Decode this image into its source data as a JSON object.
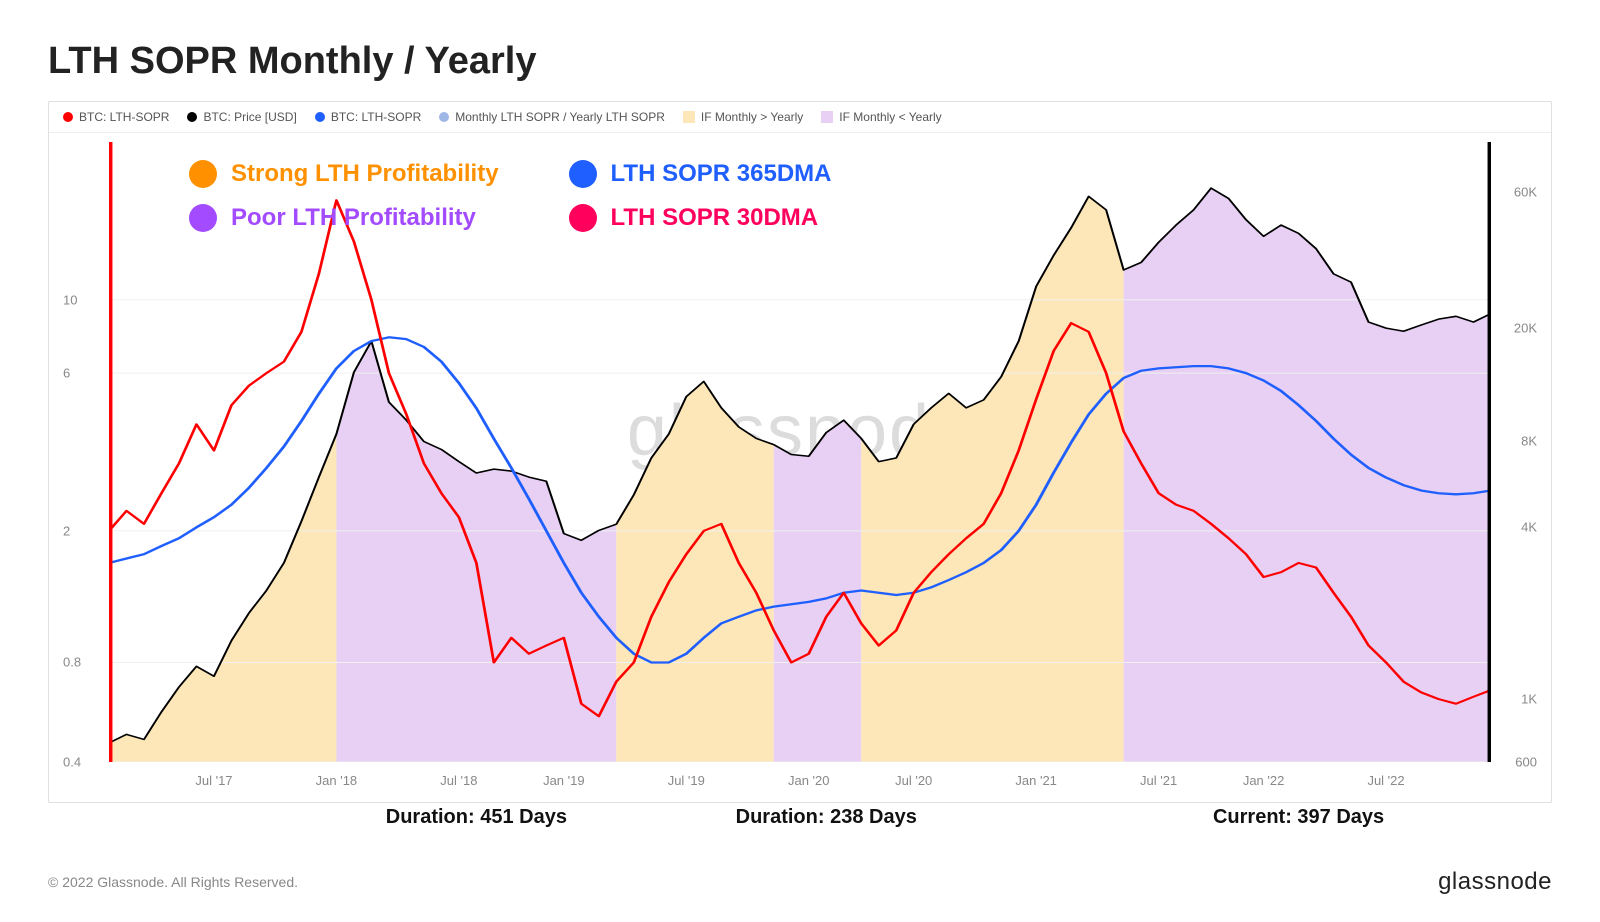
{
  "title": "LTH SOPR Monthly / Yearly",
  "copyright": "© 2022 Glassnode. All Rights Reserved.",
  "brand": "glassnode",
  "watermark": "glassnode",
  "top_legend": [
    {
      "label": "BTC: LTH-SOPR",
      "color": "#ff0000",
      "shape": "dot"
    },
    {
      "label": "BTC: Price [USD]",
      "color": "#000000",
      "shape": "dot"
    },
    {
      "label": "BTC: LTH-SOPR",
      "color": "#1f5fff",
      "shape": "dot"
    },
    {
      "label": "Monthly LTH SOPR / Yearly LTH SOPR",
      "color": "#9fb7e6",
      "shape": "dot"
    },
    {
      "label": "IF Monthly > Yearly",
      "color": "#fde7b8",
      "shape": "sq"
    },
    {
      "label": "IF Monthly < Yearly",
      "color": "#e8d0f4",
      "shape": "sq"
    }
  ],
  "overlay_legend": [
    {
      "label": "Strong LTH Profitability",
      "color": "#ff9100"
    },
    {
      "label": "LTH SOPR 365DMA",
      "color": "#1f5fff"
    },
    {
      "label": "Poor LTH Profitability",
      "color": "#a24bff"
    },
    {
      "label": "LTH SOPR 30DMA",
      "color": "#ff005c"
    }
  ],
  "chart": {
    "background_color": "#ffffff",
    "grid_color": "#f0f0f0",
    "axis_color": "#cccccc",
    "watermark_color": "#dcdcdc",
    "n_points": 80,
    "x_axis": {
      "labels": [
        "Jul '17",
        "Jan '18",
        "Jul '18",
        "Jan '19",
        "Jul '19",
        "Jan '20",
        "Jul '20",
        "Jan '21",
        "Jul '21",
        "Jan '22",
        "Jul '22"
      ],
      "label_idx": [
        6,
        13,
        20,
        26,
        33,
        40,
        46,
        53,
        60,
        66,
        73
      ]
    },
    "left_axis": {
      "scale": "log",
      "min": 0.4,
      "max": 30,
      "ticks": [
        0.4,
        0.8,
        2,
        6,
        10
      ],
      "labels": [
        "0.4",
        "0.8",
        "2",
        "6",
        "10"
      ],
      "label_color": "#888888",
      "label_fontsize": 13
    },
    "right_axis": {
      "scale": "log",
      "min": 600,
      "max": 90000,
      "ticks": [
        600,
        1000,
        4000,
        8000,
        20000,
        60000
      ],
      "labels": [
        "600",
        "1K",
        "4K",
        "8K",
        "20K",
        "60K"
      ],
      "label_color": "#888888",
      "label_fontsize": 13
    },
    "bands": [
      {
        "start_idx": 0,
        "end_idx": 13,
        "color": "#fde7b8"
      },
      {
        "start_idx": 13,
        "end_idx": 29,
        "color": "#e8d0f4"
      },
      {
        "start_idx": 29,
        "end_idx": 38,
        "color": "#fde7b8"
      },
      {
        "start_idx": 38,
        "end_idx": 43,
        "color": "#e8d0f4"
      },
      {
        "start_idx": 43,
        "end_idx": 58,
        "color": "#fde7b8"
      },
      {
        "start_idx": 58,
        "end_idx": 79,
        "color": "#e8d0f4"
      }
    ],
    "band_top_series": "price",
    "durations": [
      {
        "label": "Duration: 451 Days",
        "center_idx": 21
      },
      {
        "label": "Duration: 238 Days",
        "center_idx": 41
      },
      {
        "label": "Current: 397 Days",
        "center_idx": 68
      }
    ],
    "series": {
      "price": {
        "axis": "right",
        "color": "#000000",
        "width": 1.5,
        "data": [
          700,
          750,
          720,
          900,
          1100,
          1300,
          1200,
          1600,
          2000,
          2400,
          3000,
          4200,
          6000,
          8500,
          14000,
          18000,
          11000,
          9500,
          8000,
          7500,
          6800,
          6200,
          6400,
          6300,
          6000,
          5800,
          3800,
          3600,
          3900,
          4100,
          5200,
          7000,
          8500,
          11500,
          13000,
          10500,
          9000,
          8200,
          7800,
          7200,
          7100,
          8600,
          9500,
          8200,
          6800,
          7000,
          9200,
          10500,
          11800,
          10500,
          11200,
          13500,
          18000,
          28000,
          36000,
          45000,
          58000,
          52000,
          32000,
          34000,
          40000,
          46000,
          52000,
          62000,
          57000,
          48000,
          42000,
          46000,
          43000,
          38000,
          31000,
          29000,
          21000,
          20000,
          19500,
          20500,
          21500,
          22000,
          21000,
          22500
        ]
      },
      "red": {
        "axis": "left",
        "color": "#ff0000",
        "width": 2.0,
        "data": [
          2.0,
          2.3,
          2.1,
          2.6,
          3.2,
          4.2,
          3.5,
          4.8,
          5.5,
          6.0,
          6.5,
          8.0,
          12.0,
          20.0,
          15.0,
          10.0,
          6.0,
          4.5,
          3.2,
          2.6,
          2.2,
          1.6,
          0.8,
          0.95,
          0.85,
          0.9,
          0.95,
          0.6,
          0.55,
          0.7,
          0.8,
          1.1,
          1.4,
          1.7,
          2.0,
          2.1,
          1.6,
          1.3,
          1.0,
          0.8,
          0.85,
          1.1,
          1.3,
          1.05,
          0.9,
          1.0,
          1.3,
          1.5,
          1.7,
          1.9,
          2.1,
          2.6,
          3.5,
          5.0,
          7.0,
          8.5,
          8.0,
          6.0,
          4.0,
          3.2,
          2.6,
          2.4,
          2.3,
          2.1,
          1.9,
          1.7,
          1.45,
          1.5,
          1.6,
          1.55,
          1.3,
          1.1,
          0.9,
          0.8,
          0.7,
          0.65,
          0.62,
          0.6,
          0.63,
          0.66
        ]
      },
      "blue": {
        "axis": "left",
        "color": "#1f5fff",
        "width": 2.2,
        "data": [
          1.6,
          1.65,
          1.7,
          1.8,
          1.9,
          2.05,
          2.2,
          2.4,
          2.7,
          3.1,
          3.6,
          4.3,
          5.2,
          6.2,
          7.0,
          7.5,
          7.7,
          7.6,
          7.2,
          6.5,
          5.6,
          4.7,
          3.8,
          3.1,
          2.5,
          2.0,
          1.6,
          1.3,
          1.1,
          0.95,
          0.85,
          0.8,
          0.8,
          0.85,
          0.95,
          1.05,
          1.1,
          1.15,
          1.18,
          1.2,
          1.22,
          1.25,
          1.3,
          1.32,
          1.3,
          1.28,
          1.3,
          1.35,
          1.42,
          1.5,
          1.6,
          1.75,
          2.0,
          2.4,
          3.0,
          3.7,
          4.5,
          5.2,
          5.8,
          6.1,
          6.2,
          6.25,
          6.3,
          6.3,
          6.2,
          6.0,
          5.7,
          5.3,
          4.8,
          4.3,
          3.8,
          3.4,
          3.1,
          2.9,
          2.75,
          2.65,
          2.6,
          2.58,
          2.6,
          2.65
        ]
      }
    }
  }
}
